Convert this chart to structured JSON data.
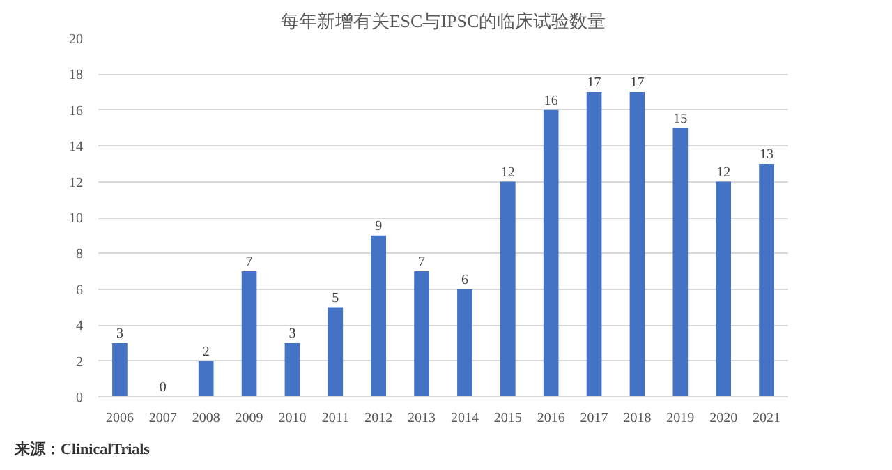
{
  "chart_data": {
    "type": "bar",
    "title": "每年新增有关ESC与IPSC的临床试验数量",
    "categories": [
      "2006",
      "2007",
      "2008",
      "2009",
      "2010",
      "2011",
      "2012",
      "2013",
      "2014",
      "2015",
      "2016",
      "2017",
      "2018",
      "2019",
      "2020",
      "2021"
    ],
    "values": [
      3,
      0,
      2,
      7,
      3,
      5,
      9,
      7,
      6,
      12,
      16,
      17,
      17,
      15,
      12,
      13
    ],
    "color": "#4472c4",
    "ylim": [
      0,
      20
    ],
    "yticks": [
      0,
      2,
      4,
      6,
      8,
      10,
      12,
      14,
      16,
      18,
      20
    ],
    "grid": "y",
    "data_labels": true,
    "annotations": [
      "来源：ClinicalTrials"
    ]
  }
}
